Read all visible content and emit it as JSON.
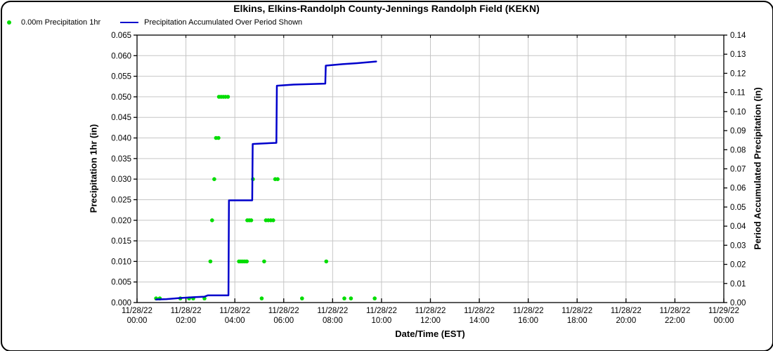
{
  "window": {
    "background": "#ffffff",
    "border_color": "#000000"
  },
  "header": {
    "title": "Elkins, Elkins-Randolph County-Jennings Randolph Field (KEKN)"
  },
  "legend": {
    "items": [
      {
        "label": "0.00m Precipitation 1hr",
        "marker": "dot",
        "color": "#00dd00"
      },
      {
        "label": "Precipitation Accumulated Over Period Shown",
        "marker": "line",
        "color": "#0000cc"
      }
    ]
  },
  "chart_data": {
    "type": "line",
    "title": "Elkins, Elkins-Randolph County-Jennings Randolph Field (KEKN)",
    "xlabel": "Date/Time (EST)",
    "x_range_hours": [
      0,
      24
    ],
    "grid": {
      "color": "#c6c6c6",
      "frame_color": "#000000"
    },
    "x_ticks": [
      {
        "date": "11/28/22",
        "time": "00:00",
        "hour": 0
      },
      {
        "date": "11/28/22",
        "time": "02:00",
        "hour": 2
      },
      {
        "date": "11/28/22",
        "time": "04:00",
        "hour": 4
      },
      {
        "date": "11/28/22",
        "time": "06:00",
        "hour": 6
      },
      {
        "date": "11/28/22",
        "time": "08:00",
        "hour": 8
      },
      {
        "date": "11/28/22",
        "time": "10:00",
        "hour": 10
      },
      {
        "date": "11/28/22",
        "time": "12:00",
        "hour": 12
      },
      {
        "date": "11/28/22",
        "time": "14:00",
        "hour": 14
      },
      {
        "date": "11/28/22",
        "time": "16:00",
        "hour": 16
      },
      {
        "date": "11/28/22",
        "time": "18:00",
        "hour": 18
      },
      {
        "date": "11/28/22",
        "time": "20:00",
        "hour": 20
      },
      {
        "date": "11/28/22",
        "time": "22:00",
        "hour": 22
      },
      {
        "date": "11/29/22",
        "time": "00:00",
        "hour": 24
      }
    ],
    "y_left": {
      "label": "Precipitation 1hr (in)",
      "min": 0,
      "max": 0.065,
      "tick_labels": [
        "0.000",
        "0.005",
        "0.010",
        "0.015",
        "0.020",
        "0.025",
        "0.030",
        "0.035",
        "0.040",
        "0.045",
        "0.050",
        "0.055",
        "0.060",
        "0.065"
      ]
    },
    "y_right": {
      "label": "Period Accumulated Precipitation (in)",
      "min": 0,
      "max": 0.14,
      "tick_labels": [
        "0.00",
        "0.01",
        "0.02",
        "0.03",
        "0.04",
        "0.05",
        "0.06",
        "0.07",
        "0.08",
        "0.09",
        "0.10",
        "0.11",
        "0.12",
        "0.13",
        "0.14"
      ]
    },
    "series": [
      {
        "name": "0.00m Precipitation 1hr",
        "type": "scatter",
        "axis": "left",
        "color": "#00dd00",
        "marker_radius": 2.8,
        "points_hour_value": [
          [
            0.78,
            0.001
          ],
          [
            0.93,
            0.001
          ],
          [
            1.77,
            0.001
          ],
          [
            2.13,
            0.001
          ],
          [
            2.3,
            0.001
          ],
          [
            2.76,
            0.001
          ],
          [
            5.1,
            0.001
          ],
          [
            6.75,
            0.001
          ],
          [
            8.48,
            0.001
          ],
          [
            8.75,
            0.001
          ],
          [
            9.72,
            0.001
          ],
          [
            3.0,
            0.01
          ],
          [
            4.17,
            0.01
          ],
          [
            4.25,
            0.01
          ],
          [
            4.33,
            0.01
          ],
          [
            4.41,
            0.01
          ],
          [
            4.49,
            0.01
          ],
          [
            5.2,
            0.01
          ],
          [
            7.74,
            0.01
          ],
          [
            3.07,
            0.02
          ],
          [
            4.51,
            0.02
          ],
          [
            4.59,
            0.02
          ],
          [
            4.67,
            0.02
          ],
          [
            5.27,
            0.02
          ],
          [
            5.37,
            0.02
          ],
          [
            5.47,
            0.02
          ],
          [
            5.57,
            0.02
          ],
          [
            3.16,
            0.03
          ],
          [
            4.74,
            0.03
          ],
          [
            5.65,
            0.03
          ],
          [
            5.75,
            0.03
          ],
          [
            3.23,
            0.04
          ],
          [
            3.33,
            0.04
          ],
          [
            3.35,
            0.05
          ],
          [
            3.44,
            0.05
          ],
          [
            3.53,
            0.05
          ],
          [
            3.62,
            0.05
          ],
          [
            3.72,
            0.05
          ]
        ]
      },
      {
        "name": "Precipitation Accumulated Over Period Shown",
        "type": "line",
        "axis": "right",
        "color": "#0000cc",
        "line_width": 2.5,
        "points_hour_value": [
          [
            0.78,
            0.0016
          ],
          [
            1.2,
            0.0018
          ],
          [
            1.77,
            0.0024
          ],
          [
            2.3,
            0.0028
          ],
          [
            2.76,
            0.0031
          ],
          [
            2.9,
            0.0038
          ],
          [
            3.74,
            0.0038
          ],
          [
            3.76,
            0.0535
          ],
          [
            4.71,
            0.0535
          ],
          [
            4.73,
            0.083
          ],
          [
            5.0,
            0.0832
          ],
          [
            5.7,
            0.0836
          ],
          [
            5.72,
            0.1135
          ],
          [
            6.4,
            0.1141
          ],
          [
            7.7,
            0.1146
          ],
          [
            7.72,
            0.124
          ],
          [
            8.4,
            0.1248
          ],
          [
            9.0,
            0.1253
          ],
          [
            9.78,
            0.1262
          ]
        ]
      }
    ]
  }
}
